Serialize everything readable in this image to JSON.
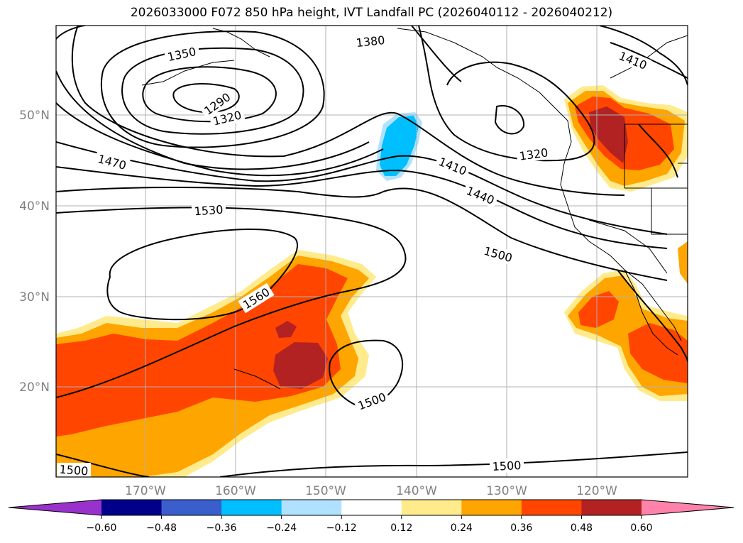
{
  "title": "2026033000 F072 850 hPa height, IVT Landfall PC (2026040112 - 2026040212)",
  "lat_labels": [
    "50°N",
    "40°N",
    "30°N",
    "20°N"
  ],
  "lon_labels": [
    "170°W",
    "160°W",
    "150°W",
    "140°W",
    "130°W",
    "120°W"
  ],
  "contour_labels": [
    "1350",
    "1290",
    "1320",
    "1380",
    "1410",
    "1470",
    "1410",
    "1440",
    "1320",
    "1530",
    "1500",
    "1560",
    "1500",
    "1500",
    "1500"
  ],
  "colorbar": {
    "ticks": [
      "−0.60",
      "−0.48",
      "−0.36",
      "−0.24",
      "−0.12",
      "0.12",
      "0.24",
      "0.36",
      "0.48",
      "0.60"
    ],
    "colors": [
      "#9932cc",
      "#00008b",
      "#3a5fcd",
      "#00bfff",
      "#b0e2ff",
      "#ffffff",
      "#ffeb8c",
      "#ffa500",
      "#ff4500",
      "#b22222",
      "#ff82ab"
    ]
  },
  "shading_colors": {
    "light_yellow": "#ffeb8c",
    "orange": "#ffa500",
    "red_orange": "#ff4500",
    "dark_red": "#b22222",
    "light_blue": "#b0e2ff",
    "cyan": "#00bfff"
  }
}
